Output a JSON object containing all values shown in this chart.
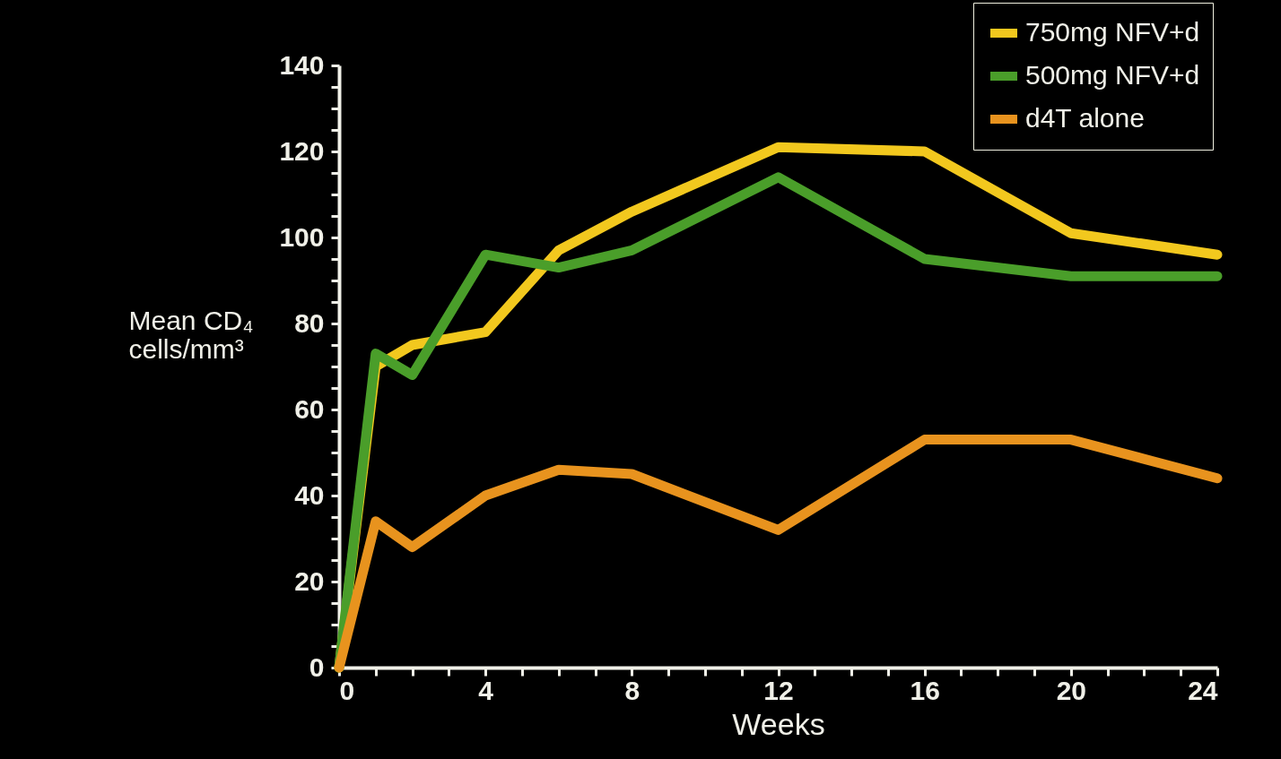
{
  "chart_data": {
    "type": "line",
    "xlabel": "Weeks",
    "ylabel": "Mean CD₄\ncells/mm³",
    "x": [
      0,
      1,
      2,
      4,
      6,
      8,
      12,
      16,
      20,
      24
    ],
    "series": [
      {
        "name": "750mg NFV+d",
        "color": "#f2c81e",
        "values": [
          0,
          70,
          75,
          78,
          97,
          106,
          121,
          120,
          101,
          96
        ]
      },
      {
        "name": "500mg NFV+d",
        "color": "#4a9e2a",
        "values": [
          0,
          73,
          68,
          96,
          93,
          97,
          114,
          95,
          91,
          91
        ]
      },
      {
        "name": "d4T alone",
        "color": "#e8931e",
        "values": [
          0,
          34,
          28,
          40,
          46,
          45,
          32,
          53,
          53,
          44
        ]
      }
    ],
    "xlim": [
      0,
      24
    ],
    "xticks": [
      0,
      {
        "value": 1,
        "label": null
      },
      {
        "value": 2,
        "label": null
      },
      {
        "value": 3,
        "label": null
      },
      4,
      {
        "value": 5,
        "label": null
      },
      {
        "value": 6,
        "label": null
      },
      {
        "value": 7,
        "label": null
      },
      8,
      {
        "value": 9,
        "label": null
      },
      {
        "value": 10,
        "label": null
      },
      {
        "value": 11,
        "label": null
      },
      12,
      {
        "value": 13,
        "label": null
      },
      {
        "value": 14,
        "label": null
      },
      {
        "value": 15,
        "label": null
      },
      16,
      {
        "value": 17,
        "label": null
      },
      {
        "value": 18,
        "label": null
      },
      {
        "value": 19,
        "label": null
      },
      20,
      {
        "value": 21,
        "label": null
      },
      {
        "value": 22,
        "label": null
      },
      {
        "value": 23,
        "label": null
      },
      24
    ],
    "ylim": [
      0,
      140
    ],
    "yticks": [
      0,
      {
        "value": 5,
        "label": null
      },
      {
        "value": 10,
        "label": null
      },
      {
        "value": 15,
        "label": null
      },
      20,
      {
        "value": 25,
        "label": null
      },
      {
        "value": 30,
        "label": null
      },
      {
        "value": 35,
        "label": null
      },
      40,
      {
        "value": 45,
        "label": null
      },
      {
        "value": 50,
        "label": null
      },
      {
        "value": 55,
        "label": null
      },
      60,
      {
        "value": 65,
        "label": null
      },
      {
        "value": 70,
        "label": null
      },
      {
        "value": 75,
        "label": null
      },
      80,
      {
        "value": 85,
        "label": null
      },
      {
        "value": 90,
        "label": null
      },
      {
        "value": 95,
        "label": null
      },
      100,
      {
        "value": 105,
        "label": null
      },
      {
        "value": 110,
        "label": null
      },
      {
        "value": 115,
        "label": null
      },
      120,
      {
        "value": 125,
        "label": null
      },
      {
        "value": 130,
        "label": null
      },
      {
        "value": 135,
        "label": null
      },
      140
    ],
    "grid": false,
    "legend": "top right",
    "marker": "none",
    "line_style": "solid"
  }
}
